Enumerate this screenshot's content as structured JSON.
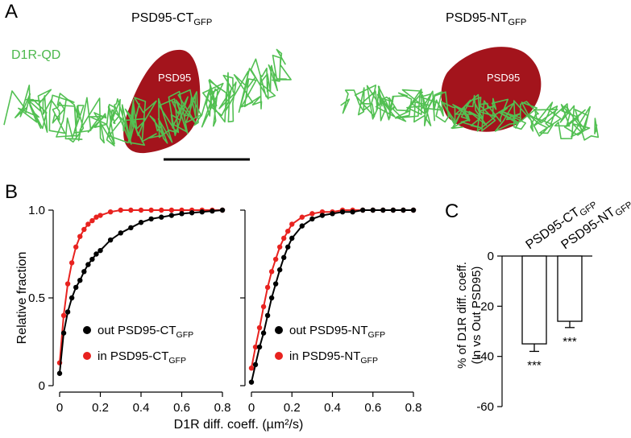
{
  "figure": {
    "panel_labels": [
      "A",
      "B",
      "C"
    ],
    "image_titles": [
      {
        "text": "PSD95-CT",
        "sub": "GFP"
      },
      {
        "text": "PSD95-NT",
        "sub": "GFP"
      }
    ],
    "trajectory_label": "D1R-QD",
    "blob_labels": [
      "PSD95",
      "PSD95"
    ],
    "xlabel": "D1R diff. coeff. (µm²/s)"
  },
  "chart_data": [
    {
      "type": "line",
      "ylabel": "Relative fraction",
      "x": [
        0,
        0.02,
        0.04,
        0.06,
        0.08,
        0.1,
        0.12,
        0.14,
        0.16,
        0.18,
        0.2,
        0.25,
        0.3,
        0.35,
        0.4,
        0.45,
        0.5,
        0.55,
        0.6,
        0.65,
        0.7,
        0.75,
        0.8
      ],
      "series": [
        {
          "name": "out PSD95-CT",
          "name_sub": "GFP",
          "color": "#000000",
          "values": [
            0.07,
            0.3,
            0.42,
            0.5,
            0.56,
            0.6,
            0.65,
            0.69,
            0.72,
            0.75,
            0.77,
            0.83,
            0.87,
            0.9,
            0.93,
            0.95,
            0.96,
            0.97,
            0.98,
            0.985,
            0.99,
            0.995,
            1.0
          ]
        },
        {
          "name": "in PSD95-CT",
          "name_sub": "GFP",
          "color": "#e8221f",
          "values": [
            0.13,
            0.4,
            0.58,
            0.7,
            0.79,
            0.85,
            0.89,
            0.92,
            0.94,
            0.96,
            0.97,
            0.99,
            1.0,
            1.0,
            1.0,
            1.0,
            1.0,
            1.0,
            1.0,
            1.0,
            1.0,
            1.0,
            1.0
          ]
        }
      ],
      "xlim": [
        0,
        0.8
      ],
      "xticks": [
        0,
        0.2,
        0.4,
        0.6,
        0.8
      ],
      "ylim": [
        0,
        1
      ],
      "yticks": [
        0,
        0.5,
        {
          "value": 1,
          "label": "1.0"
        }
      ],
      "show_ytick_labels": true
    },
    {
      "type": "line",
      "x": [
        0,
        0.02,
        0.04,
        0.06,
        0.08,
        0.1,
        0.12,
        0.14,
        0.16,
        0.18,
        0.2,
        0.25,
        0.3,
        0.35,
        0.4,
        0.45,
        0.5,
        0.55,
        0.6,
        0.65,
        0.7,
        0.75,
        0.8
      ],
      "series": [
        {
          "name": "out PSD95-NT",
          "name_sub": "GFP",
          "color": "#000000",
          "values": [
            0.02,
            0.12,
            0.22,
            0.3,
            0.4,
            0.5,
            0.58,
            0.66,
            0.73,
            0.79,
            0.84,
            0.91,
            0.95,
            0.97,
            0.98,
            0.99,
            0.99,
            1.0,
            1.0,
            1.0,
            1.0,
            1.0,
            1.0
          ]
        },
        {
          "name": "in PSD95-NT",
          "name_sub": "GFP",
          "color": "#e8221f",
          "values": [
            0.1,
            0.22,
            0.33,
            0.45,
            0.56,
            0.65,
            0.72,
            0.79,
            0.84,
            0.88,
            0.92,
            0.96,
            0.98,
            0.99,
            0.99,
            1.0,
            1.0,
            1.0,
            1.0,
            1.0,
            1.0,
            1.0,
            1.0
          ]
        }
      ],
      "xlim": [
        0,
        0.8
      ],
      "xticks": [
        0,
        0.2,
        0.4,
        0.6,
        0.8
      ],
      "ylim": [
        0,
        1
      ],
      "yticks": [
        0,
        0.5,
        1
      ],
      "show_ytick_labels": false
    },
    {
      "type": "bar",
      "ylabel": [
        "% of D1R diff. coeff.",
        "(In vs Out PSD95)"
      ],
      "categories": [
        {
          "text": "PSD95-CT",
          "sub": "GFP"
        },
        {
          "text": "PSD95-NT",
          "sub": "GFP"
        }
      ],
      "values": [
        -35,
        -26
      ],
      "errors": [
        3,
        2.5
      ],
      "annotations": [
        "***",
        "***"
      ],
      "color": "#ffffff",
      "ylim": [
        -60,
        0
      ],
      "yticks": [
        0,
        -20,
        -40,
        -60
      ]
    }
  ]
}
